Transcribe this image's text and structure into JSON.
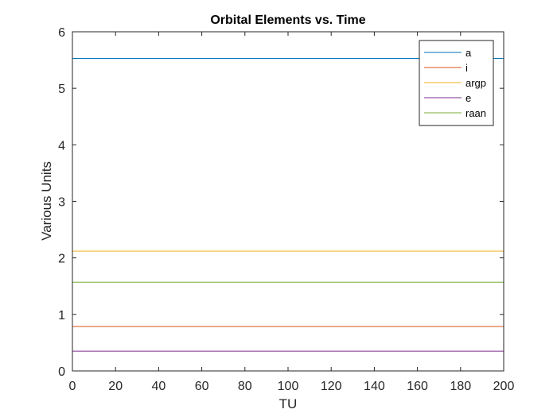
{
  "chart_data": {
    "type": "line",
    "title": "Orbital Elements vs. Time",
    "xlabel": "TU",
    "ylabel": "Various Units",
    "xlim": [
      0,
      200
    ],
    "ylim": [
      0,
      6
    ],
    "xticks": [
      0,
      20,
      40,
      60,
      80,
      100,
      120,
      140,
      160,
      180,
      200
    ],
    "yticks": [
      0,
      1,
      2,
      3,
      4,
      5,
      6
    ],
    "grid": false,
    "legend_position": "top-right",
    "series": [
      {
        "name": "a",
        "color": "#0072BD",
        "x": [
          0,
          200
        ],
        "y": [
          5.53,
          5.53
        ]
      },
      {
        "name": "i",
        "color": "#D95319",
        "x": [
          0,
          200
        ],
        "y": [
          0.785,
          0.785
        ]
      },
      {
        "name": "argp",
        "color": "#EDB120",
        "x": [
          0,
          200
        ],
        "y": [
          2.12,
          2.12
        ]
      },
      {
        "name": "e",
        "color": "#7E2F8E",
        "x": [
          0,
          200
        ],
        "y": [
          0.35,
          0.35
        ]
      },
      {
        "name": "raan",
        "color": "#77AC30",
        "x": [
          0,
          200
        ],
        "y": [
          1.57,
          1.57
        ]
      }
    ]
  }
}
